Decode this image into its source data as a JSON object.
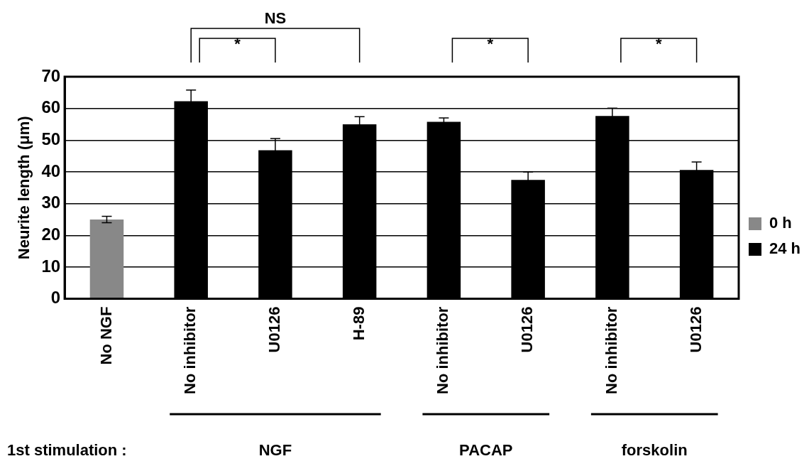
{
  "chart_data": {
    "type": "bar",
    "ylabel": "Neurite length (μm)",
    "categories": [
      "No NGF",
      "No inhibitor",
      "U0126",
      "H-89",
      "No inhibitor",
      "U0126",
      "No inhibitor",
      "U0126"
    ],
    "series": [
      {
        "name": "0 h",
        "color": "#888888",
        "values": [
          25,
          null,
          null,
          null,
          null,
          null,
          null,
          null
        ],
        "errors": [
          1,
          null,
          null,
          null,
          null,
          null,
          null,
          null
        ]
      },
      {
        "name": "24 h",
        "color": "#000000",
        "values": [
          null,
          62.3,
          46.8,
          55,
          55.8,
          37.5,
          57.6,
          40.6
        ],
        "errors": [
          null,
          3.5,
          3.7,
          2.4,
          1.2,
          2.5,
          2.5,
          2.5
        ]
      }
    ],
    "ylim": [
      0,
      70
    ],
    "yticks": [
      0,
      10,
      20,
      30,
      40,
      50,
      60,
      70
    ],
    "grid": "y",
    "legend": "right",
    "annotations": [
      "NS",
      "*",
      "*",
      "*",
      "1st stimulation :",
      "NGF",
      "PACAP",
      "forskolin"
    ]
  }
}
